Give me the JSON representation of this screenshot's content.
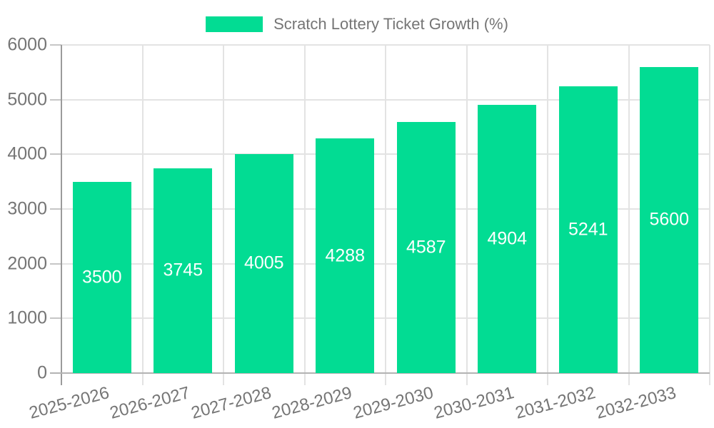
{
  "chart_data": {
    "type": "bar",
    "legend": "Scratch Lottery Ticket Growth (%)",
    "legend_position": "top-center",
    "categories": [
      "2025-2026",
      "2026-2027",
      "2027-2028",
      "2028-2029",
      "2029-2030",
      "2030-2031",
      "2031-2032",
      "2032-2033"
    ],
    "values": [
      3500,
      3745,
      4005,
      4288,
      4587,
      4904,
      5241,
      5600
    ],
    "ylim": [
      0,
      6000
    ],
    "yticks": [
      0,
      1000,
      2000,
      3000,
      4000,
      5000,
      6000
    ],
    "grid": true,
    "xlabel": "",
    "ylabel": "",
    "bar_color": "#02dc93",
    "value_label_color": "#ffffff",
    "axis_text_color": "#757575",
    "grid_color": "#e3e3e3",
    "axis_line_color": "#9b9b9b"
  }
}
